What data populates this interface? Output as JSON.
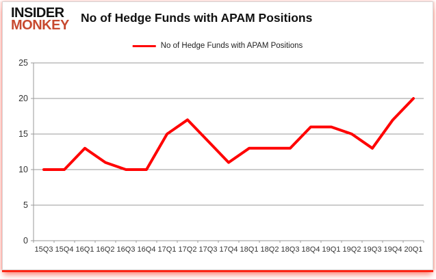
{
  "logo": {
    "line1": "INSIDER",
    "line2": "MONKEY"
  },
  "title": "No of Hedge Funds with APAM Positions",
  "legend": {
    "label": "No of Hedge Funds with APAM Positions"
  },
  "colors": {
    "series_line": "#ff0000",
    "grid": "#9a9a9a",
    "axis": "#9a9a9a",
    "tick_text": "#333333",
    "logo_red": "#c7492f",
    "title_text": "#111111",
    "card_shadow_red": "#fb2616"
  },
  "chart_data": {
    "type": "line",
    "title": "No of Hedge Funds with APAM Positions",
    "legend_entries": [
      "No of Hedge Funds with APAM Positions"
    ],
    "legend_position": "top-center",
    "categories": [
      "15Q3",
      "15Q4",
      "16Q1",
      "16Q2",
      "16Q3",
      "16Q4",
      "17Q1",
      "17Q2",
      "17Q3",
      "17Q4",
      "18Q1",
      "18Q2",
      "18Q3",
      "18Q4",
      "19Q1",
      "19Q2",
      "19Q3",
      "19Q4",
      "20Q1"
    ],
    "values": [
      10,
      10,
      13,
      11,
      10,
      10,
      15,
      17,
      14,
      11,
      13,
      13,
      13,
      16,
      16,
      15,
      13,
      17,
      20
    ],
    "xlabel": "",
    "ylabel": "",
    "ylim": [
      0,
      25
    ],
    "yticks": [
      0,
      5,
      10,
      15,
      20,
      25
    ],
    "grid": "horizontal-only",
    "line_color": "#ff0000",
    "line_width": 4
  }
}
